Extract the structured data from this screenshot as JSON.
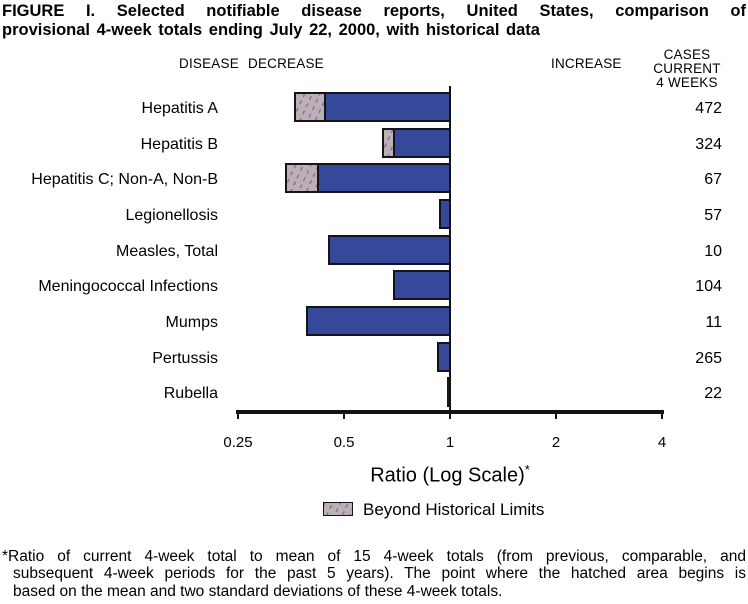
{
  "title": {
    "line1": "FIGURE I. Selected notifiable disease reports, United States, comparison of",
    "line2": "provisional 4-week totals ending July 22, 2000, with historical data"
  },
  "headers": {
    "disease": "DISEASE",
    "decrease": "DECREASE",
    "increase": "INCREASE",
    "cases_line1": "CASES CURRENT",
    "cases_line2": "4 WEEKS"
  },
  "chart_data": {
    "type": "bar",
    "orientation": "horizontal",
    "x_scale": "log2",
    "x_ticks": [
      0.25,
      0.5,
      1,
      2,
      4
    ],
    "x_tick_labels": [
      "0.25",
      "0.5",
      "1",
      "2",
      "4"
    ],
    "xlabel": "Ratio (Log Scale)*",
    "baseline": 1,
    "legend_position": "bottom",
    "rows": [
      {
        "disease": "Hepatitis A",
        "cases_current_4_weeks": 472,
        "ratio": 0.36,
        "beyond_limits_to": 0.44
      },
      {
        "disease": "Hepatitis B",
        "cases_current_4_weeks": 324,
        "ratio": 0.64,
        "beyond_limits_to": 0.69
      },
      {
        "disease": "Hepatitis C; Non-A, Non-B",
        "cases_current_4_weeks": 67,
        "ratio": 0.34,
        "beyond_limits_to": 0.42
      },
      {
        "disease": "Legionellosis",
        "cases_current_4_weeks": 57,
        "ratio": 0.93,
        "beyond_limits_to": null
      },
      {
        "disease": "Measles, Total",
        "cases_current_4_weeks": 10,
        "ratio": 0.45,
        "beyond_limits_to": null
      },
      {
        "disease": "Meningococcal Infections",
        "cases_current_4_weeks": 104,
        "ratio": 0.69,
        "beyond_limits_to": null
      },
      {
        "disease": "Mumps",
        "cases_current_4_weeks": 11,
        "ratio": 0.39,
        "beyond_limits_to": null
      },
      {
        "disease": "Pertussis",
        "cases_current_4_weeks": 265,
        "ratio": 0.92,
        "beyond_limits_to": null
      },
      {
        "disease": "Rubella",
        "cases_current_4_weeks": 22,
        "ratio": 0.98,
        "beyond_limits_to": null
      }
    ]
  },
  "axis": {
    "label_main": "Ratio (Log Scale)",
    "label_sup": "*"
  },
  "legend": {
    "label": "Beyond Historical Limits"
  },
  "footnote": {
    "lines": [
      "*Ratio of current 4-week total to mean of 15 4-week totals (from previous, comparable, and",
      "subsequent 4-week periods for the past 5 years). The point where the hatched area begins is",
      "based on the mean and two standard deviations of these 4-week totals."
    ]
  },
  "colors": {
    "bar_blue": "#36489a",
    "bar_border": "#141418",
    "hatch_gray": "#b5b3b6",
    "hatch_pink": "#c2559e"
  }
}
